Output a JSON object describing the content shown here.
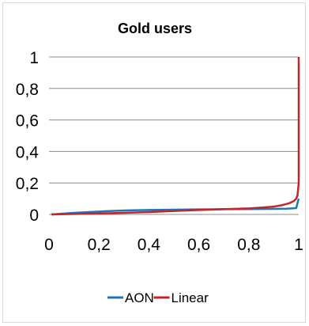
{
  "chart_data": {
    "type": "line",
    "title": "Gold users",
    "xlabel": "",
    "ylabel": "",
    "xlim": [
      0,
      1
    ],
    "ylim": [
      0,
      1
    ],
    "x_ticks": [
      0,
      0.2,
      0.4,
      0.6,
      0.8,
      1
    ],
    "y_ticks": [
      0,
      0.2,
      0.4,
      0.6,
      0.8,
      1
    ],
    "x_tick_labels": [
      "0",
      "0,2",
      "0,4",
      "0,6",
      "0,8",
      "1"
    ],
    "y_tick_labels": [
      "0",
      "0,2",
      "0,4",
      "0,6",
      "0,8",
      "1"
    ],
    "grid": "horizontal",
    "legend_position": "bottom",
    "series": [
      {
        "name": "AON",
        "color": "#1f77b4",
        "x": [
          0.01,
          0.1,
          0.2,
          0.25,
          0.3,
          0.4,
          0.5,
          0.6,
          0.7,
          0.8,
          0.9,
          0.95,
          0.99,
          1.0
        ],
        "y": [
          0.0,
          0.01,
          0.018,
          0.022,
          0.025,
          0.028,
          0.03,
          0.032,
          0.033,
          0.034,
          0.035,
          0.036,
          0.04,
          0.1
        ]
      },
      {
        "name": "Linear",
        "color": "#c0262c",
        "x": [
          0.01,
          0.1,
          0.2,
          0.3,
          0.4,
          0.5,
          0.6,
          0.7,
          0.8,
          0.85,
          0.9,
          0.93,
          0.96,
          0.98,
          0.99,
          0.995,
          1.0,
          1.0
        ],
        "y": [
          0.0,
          0.003,
          0.006,
          0.01,
          0.015,
          0.022,
          0.028,
          0.033,
          0.038,
          0.043,
          0.05,
          0.058,
          0.07,
          0.085,
          0.1,
          0.12,
          0.2,
          1.0
        ]
      }
    ]
  }
}
